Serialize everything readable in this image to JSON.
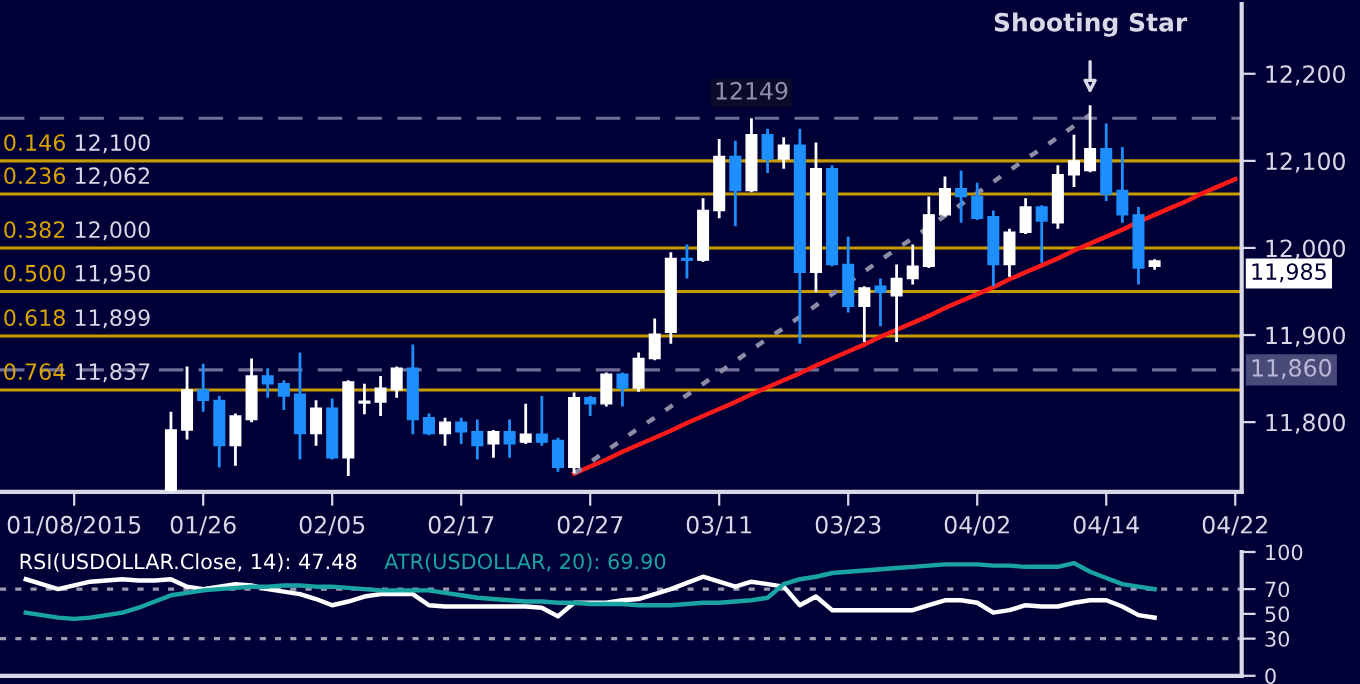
{
  "chart_data": [
    {
      "type": "candlestick",
      "categories": [
        null,
        null,
        null,
        null,
        "01/08/2015",
        null,
        null,
        null,
        null,
        null,
        null,
        null,
        "01/26",
        null,
        null,
        null,
        null,
        null,
        null,
        null,
        "02/05",
        null,
        null,
        null,
        null,
        null,
        null,
        null,
        "02/17",
        null,
        null,
        null,
        null,
        null,
        null,
        null,
        "02/27",
        null,
        null,
        null,
        null,
        null,
        null,
        null,
        "03/11",
        null,
        null,
        null,
        null,
        null,
        null,
        null,
        "03/23",
        null,
        null,
        null,
        null,
        null,
        null,
        null,
        "04/02",
        null,
        null,
        null,
        null,
        null,
        null,
        null,
        "04/14",
        null,
        null,
        null,
        null,
        null,
        null,
        null,
        "04/22"
      ],
      "ohlc": [
        null,
        null,
        null,
        null,
        null,
        null,
        null,
        null,
        null,
        null,
        [
          11722,
          11812,
          11720,
          11791
        ],
        [
          11791,
          11864,
          11780,
          11837
        ],
        [
          11837,
          11867,
          11812,
          11825
        ],
        [
          11825,
          11830,
          11748,
          11773
        ],
        [
          11773,
          11810,
          11750,
          11807
        ],
        [
          11803,
          11873,
          11800,
          11853
        ],
        [
          11853,
          11862,
          11828,
          11844
        ],
        [
          11844,
          11848,
          11814,
          11830
        ],
        [
          11832,
          11880,
          11757,
          11787
        ],
        [
          11787,
          11825,
          11773,
          11816
        ],
        [
          11816,
          11827,
          11757,
          11759
        ],
        [
          11759,
          11848,
          11738,
          11846
        ],
        [
          11822,
          11844,
          11809,
          11824
        ],
        [
          11823,
          11853,
          11807,
          11839
        ],
        [
          11837,
          11864,
          11828,
          11862
        ],
        [
          11862,
          11889,
          11786,
          11803
        ],
        [
          11805,
          11810,
          11785,
          11787
        ],
        [
          11787,
          11805,
          11773,
          11800
        ],
        [
          11800,
          11805,
          11775,
          11789
        ],
        [
          11789,
          11803,
          11757,
          11773
        ],
        [
          11775,
          11791,
          11759,
          11789
        ],
        [
          11789,
          11803,
          11759,
          11775
        ],
        [
          11777,
          11821,
          11775,
          11786
        ],
        [
          11786,
          11830,
          11773,
          11777
        ],
        [
          11779,
          11782,
          11743,
          11748
        ],
        [
          11748,
          11834,
          11741,
          11828
        ],
        [
          11828,
          11830,
          11807,
          11821
        ],
        [
          11821,
          11857,
          11818,
          11855
        ],
        [
          11855,
          11857,
          11818,
          11839
        ],
        [
          11839,
          11880,
          11835,
          11873
        ],
        [
          11873,
          11919,
          11871,
          11901
        ],
        [
          11903,
          11995,
          11890,
          11988
        ],
        [
          11988,
          12004,
          11965,
          11986
        ],
        [
          11986,
          12057,
          11984,
          12043
        ],
        [
          12043,
          12125,
          12034,
          12105
        ],
        [
          12105,
          12123,
          12025,
          12066
        ],
        [
          12066,
          12149,
          12064,
          12130
        ],
        [
          12130,
          12137,
          12086,
          12102
        ],
        [
          12102,
          12127,
          12091,
          12118
        ],
        [
          12118,
          12137,
          11890,
          11972
        ],
        [
          11972,
          12121,
          11949,
          12091
        ],
        [
          12091,
          12095,
          11979,
          11981
        ],
        [
          11981,
          12013,
          11926,
          11933
        ],
        [
          11933,
          11956,
          11892,
          11954
        ],
        [
          11956,
          11965,
          11910,
          11949
        ],
        [
          11945,
          11981,
          11892,
          11965
        ],
        [
          11965,
          12004,
          11958,
          11979
        ],
        [
          11979,
          12059,
          11977,
          12038
        ],
        [
          12038,
          12082,
          12036,
          12068
        ],
        [
          12068,
          12089,
          12029,
          12059
        ],
        [
          12059,
          12075,
          12032,
          12034
        ],
        [
          12036,
          12043,
          11956,
          11981
        ],
        [
          11981,
          12022,
          11967,
          12018
        ],
        [
          12018,
          12057,
          12016,
          12047
        ],
        [
          12047,
          12049,
          11983,
          12031
        ],
        [
          12029,
          12095,
          12022,
          12084
        ],
        [
          12084,
          12130,
          12070,
          12100
        ],
        [
          12089,
          12164,
          12087,
          12114
        ],
        [
          12114,
          12143,
          12054,
          12062
        ],
        [
          12066,
          12116,
          12029,
          12038
        ],
        [
          12038,
          12047,
          11958,
          11977
        ],
        [
          11979,
          11987,
          11975,
          11985
        ],
        null,
        null,
        null,
        null,
        null
      ],
      "colors": [
        null,
        null,
        null,
        null,
        null,
        null,
        null,
        null,
        null,
        null,
        "#ffffff",
        "#ffffff",
        "#1e8fff",
        "#1e8fff",
        "#ffffff",
        "#ffffff",
        "#1e8fff",
        "#1e8fff",
        "#1e8fff",
        "#ffffff",
        "#1e8fff",
        "#ffffff",
        "#ffffff",
        "#ffffff",
        "#ffffff",
        "#1e8fff",
        "#1e8fff",
        "#ffffff",
        "#1e8fff",
        "#1e8fff",
        "#ffffff",
        "#1e8fff",
        "#ffffff",
        "#1e8fff",
        "#1e8fff",
        "#ffffff",
        "#1e8fff",
        "#ffffff",
        "#1e8fff",
        "#ffffff",
        "#ffffff",
        "#ffffff",
        "#1e8fff",
        "#ffffff",
        "#ffffff",
        "#1e8fff",
        "#ffffff",
        "#1e8fff",
        "#ffffff",
        "#1e8fff",
        "#ffffff",
        "#1e8fff",
        "#1e8fff",
        "#ffffff",
        "#1e8fff",
        "#ffffff",
        "#ffffff",
        "#ffffff",
        "#ffffff",
        "#1e8fff",
        "#1e8fff",
        "#1e8fff",
        "#ffffff",
        "#ffffff",
        "#1e8fff",
        "#ffffff",
        "#ffffff",
        "#ffffff",
        "#1e8fff",
        "#1e8fff",
        "#1e8fff",
        "#ffffff",
        null,
        null,
        null,
        null,
        null
      ],
      "series": [
        {
          "type": "line",
          "color": "#ff1a1a",
          "line_style": "solid",
          "values": [
            null,
            null,
            null,
            null,
            null,
            null,
            null,
            null,
            null,
            null,
            null,
            null,
            null,
            null,
            null,
            null,
            null,
            null,
            null,
            null,
            null,
            null,
            null,
            null,
            null,
            null,
            null,
            null,
            null,
            null,
            null,
            null,
            null,
            null,
            null,
            11741,
            11749,
            11757,
            11766,
            11774,
            11782,
            11790,
            11799,
            11807,
            11815,
            11823,
            11832,
            11840,
            11848,
            11856,
            11865,
            11873,
            11881,
            11889,
            11898,
            11906,
            11914,
            11922,
            11931,
            11939,
            11947,
            11955,
            11964,
            11972,
            11980,
            11988,
            11997,
            12005,
            12013,
            12021,
            12030,
            12038,
            12046,
            12054,
            12063,
            12071,
            12079
          ]
        },
        {
          "type": "line",
          "color": "#8c8ca6",
          "line_style": "dotted",
          "values": [
            null,
            null,
            null,
            null,
            null,
            null,
            null,
            null,
            null,
            null,
            null,
            null,
            null,
            null,
            null,
            null,
            null,
            null,
            null,
            null,
            null,
            null,
            null,
            null,
            null,
            null,
            null,
            null,
            null,
            null,
            null,
            null,
            null,
            null,
            null,
            11741,
            11754,
            11767,
            11780,
            11793,
            11805,
            11818,
            11831,
            11844,
            11857,
            11870,
            11883,
            11896,
            11908,
            11921,
            11934,
            11947,
            11960,
            11973,
            11986,
            11999,
            12011,
            12024,
            12037,
            12050,
            12063,
            12076,
            12089,
            12102,
            12114,
            12127,
            12140,
            12153,
            null,
            null,
            null,
            null,
            null,
            null,
            null,
            null,
            null
          ]
        }
      ],
      "ylim": [
        11720,
        12280
      ],
      "yticks": [
        {
          "value": 11800,
          "label": "11,800"
        },
        {
          "value": 11900,
          "label": "11,900"
        },
        {
          "value": 12000,
          "label": "12,000"
        },
        {
          "value": 12100,
          "label": "12,100"
        },
        {
          "value": 12200,
          "label": "12,200"
        }
      ],
      "ref_lines": [
        {
          "axis": "y",
          "value": 12100,
          "label": "0.146 12,100",
          "color": "#c89b00",
          "line_style": "solid"
        },
        {
          "axis": "y",
          "value": 12062,
          "label": "0.236 12,062",
          "color": "#c89b00",
          "line_style": "solid"
        },
        {
          "axis": "y",
          "value": 12000,
          "label": "0.382 12,000",
          "color": "#c89b00",
          "line_style": "solid"
        },
        {
          "axis": "y",
          "value": 11950,
          "label": "0.500 11,950",
          "color": "#c89b00",
          "line_style": "solid"
        },
        {
          "axis": "y",
          "value": 11899,
          "label": "0.618 11,899",
          "color": "#c89b00",
          "line_style": "solid"
        },
        {
          "axis": "y",
          "value": 11837,
          "label": "0.764 11,837",
          "color": "#c89b00",
          "line_style": "solid"
        },
        {
          "axis": "y",
          "value": 12149,
          "label": "12149",
          "color": "#6e6e96",
          "line_style": "dashed"
        },
        {
          "axis": "y",
          "value": 11860,
          "label": "11,860",
          "color": "#6e6e96",
          "line_style": "dashed"
        }
      ],
      "annotations": [
        "Shooting Star",
        "11,985"
      ],
      "grid": false
    },
    {
      "type": "line",
      "categories": [
        null,
        null,
        null,
        null,
        null,
        null,
        null,
        null,
        null,
        null,
        null,
        null,
        null,
        null,
        null,
        null,
        null,
        null,
        null,
        null,
        null,
        null,
        null,
        null,
        null,
        null,
        null,
        null,
        null,
        null,
        null,
        null,
        null,
        null,
        null,
        null,
        null,
        null,
        null,
        null,
        null,
        null,
        null,
        null,
        null,
        null,
        null,
        null,
        null,
        null,
        null,
        null,
        null,
        null,
        null,
        null,
        null,
        null,
        null,
        null,
        null,
        null,
        null,
        null,
        null,
        null,
        null,
        null,
        null,
        null,
        null,
        null,
        null,
        null,
        null,
        null,
        null
      ],
      "series": [
        {
          "name": "RSI(USDOLLAR.Close, 14): 47.48",
          "color": "#ffffff",
          "values": [
            null,
            78,
            74,
            70,
            73,
            76,
            77,
            78,
            77,
            77,
            78,
            72,
            70,
            72,
            74,
            73,
            70,
            68,
            66,
            62,
            57,
            60,
            64,
            66,
            66,
            66,
            57,
            56,
            56,
            56,
            56,
            56,
            56,
            55,
            48,
            59,
            59,
            59,
            61,
            62,
            66,
            70,
            75,
            80,
            76,
            72,
            76,
            74,
            72,
            57,
            64,
            53,
            53,
            53,
            53,
            53,
            53,
            57,
            61,
            61,
            59,
            51,
            53,
            57,
            56,
            56,
            59,
            61,
            61,
            56,
            49,
            47,
            null,
            null,
            null,
            null,
            null
          ]
        },
        {
          "name": "ATR(USDOLLAR, 20): 69.90",
          "color": "#1aa3a3",
          "values": [
            null,
            51,
            49,
            47,
            46,
            47,
            49,
            51,
            55,
            60,
            65,
            67,
            69,
            70,
            71,
            72,
            72,
            73,
            73,
            72,
            72,
            71,
            70,
            69,
            69,
            69,
            69,
            67,
            65,
            63,
            62,
            61,
            60,
            60,
            59,
            59,
            58,
            58,
            58,
            57,
            57,
            57,
            58,
            59,
            59,
            60,
            61,
            63,
            74,
            78,
            80,
            83,
            84,
            85,
            86,
            87,
            88,
            89,
            90,
            90,
            90,
            89,
            89,
            88,
            88,
            88,
            91,
            84,
            79,
            74,
            72,
            70,
            null,
            null,
            null,
            null,
            null
          ]
        }
      ],
      "ylim": [
        0,
        100
      ],
      "yticks": [
        0,
        30,
        50,
        70,
        100
      ],
      "ref_lines": [
        {
          "axis": "y",
          "value": 70,
          "color": "#9a9ab0",
          "line_style": "dotted"
        },
        {
          "axis": "y",
          "value": 30,
          "color": "#9a9ab0",
          "line_style": "dotted"
        }
      ],
      "tick_labels": "y",
      "legend": "top left",
      "grid": false
    }
  ]
}
